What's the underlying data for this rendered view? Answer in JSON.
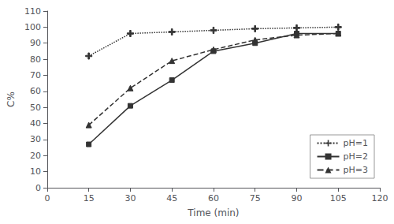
{
  "chart_data": {
    "type": "line",
    "xlabel": "Time (min)",
    "ylabel": "C%",
    "x": [
      15,
      30,
      45,
      60,
      75,
      90,
      105
    ],
    "series": [
      {
        "name": "pH=1",
        "color": "#333333",
        "marker": "plus",
        "line_style": "dotted",
        "values": [
          82,
          96,
          97,
          98,
          99,
          99.5,
          100
        ]
      },
      {
        "name": "pH=2",
        "color": "#333333",
        "marker": "square",
        "line_style": "solid",
        "values": [
          27,
          51,
          67,
          85,
          90,
          96,
          96
        ]
      },
      {
        "name": "pH=3",
        "color": "#333333",
        "marker": "triangle",
        "line_style": "dashed",
        "values": [
          39,
          62,
          79,
          86,
          92,
          95,
          96
        ]
      }
    ],
    "xlim": [
      0,
      120
    ],
    "xticks": [
      0,
      15,
      30,
      45,
      60,
      75,
      90,
      105,
      120
    ],
    "ylim": [
      0,
      110
    ],
    "yticks": [
      0,
      10,
      20,
      30,
      40,
      50,
      60,
      70,
      80,
      90,
      100,
      110
    ],
    "grid": false,
    "legend": "lower right"
  }
}
